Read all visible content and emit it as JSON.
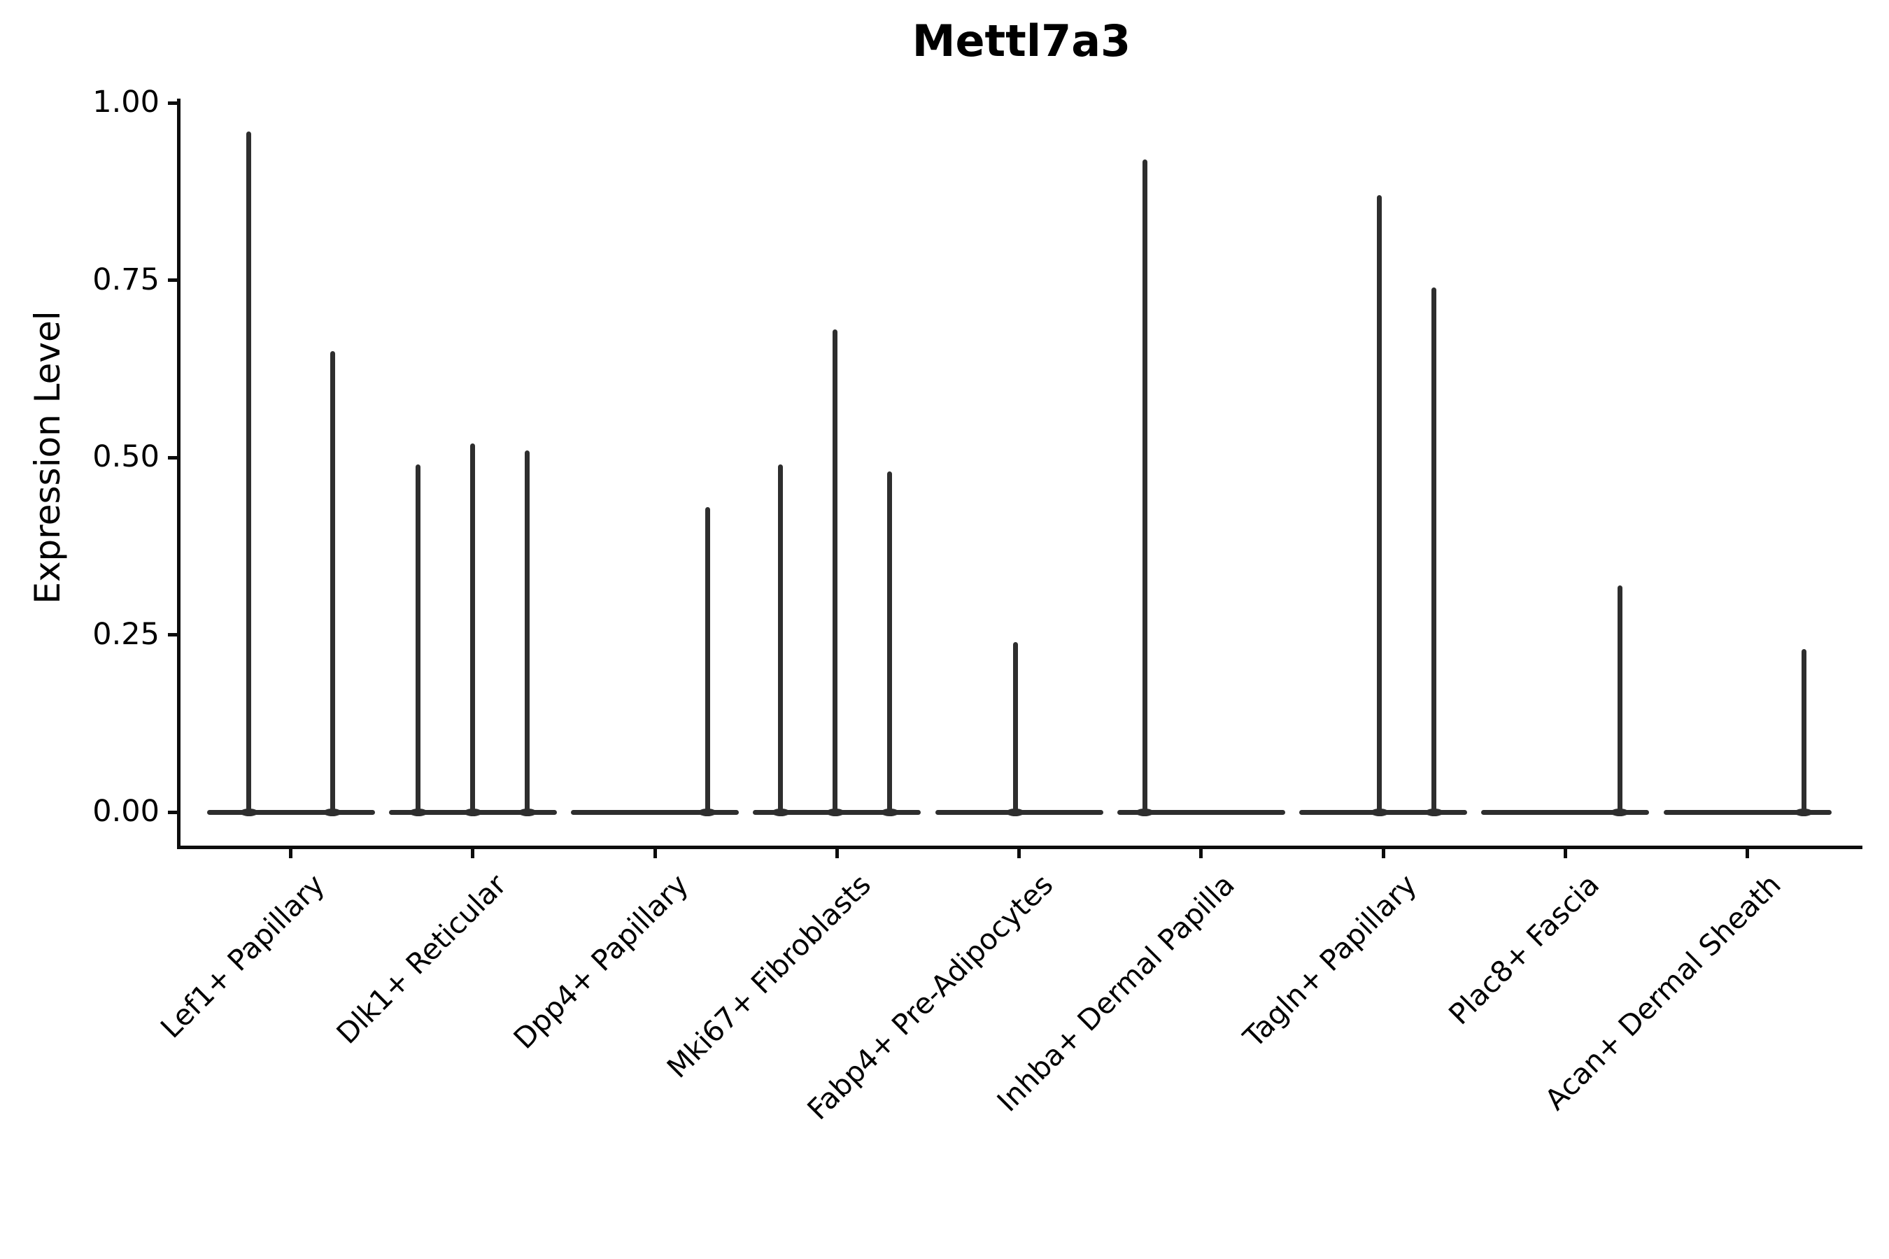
{
  "title": "Mettl7a3",
  "y_axis": {
    "label": "Expression Level",
    "tick_labels": [
      "0.00",
      "0.25",
      "0.50",
      "0.75",
      "1.00"
    ],
    "tick_values": [
      0,
      0.25,
      0.5,
      0.75,
      1.0
    ]
  },
  "chart_data": {
    "type": "violin",
    "title": "Mettl7a3",
    "xlabel": "",
    "ylabel": "Expression Level",
    "ylim": [
      0,
      1.0
    ],
    "grid": false,
    "legend": "none",
    "y_tick_labels": [
      "0.00",
      "0.25",
      "0.50",
      "0.75",
      "1.00"
    ],
    "y_tick_values": [
      0,
      0.25,
      0.5,
      0.75,
      1.0
    ],
    "categories": [
      "Lef1+ Papillary",
      "Dlk1+ Reticular",
      "Dpp4+ Papillary",
      "Mki67+ Fibroblasts",
      "Fabp4+ Pre-Adipocytes",
      "Inhba+ Dermal Papilla",
      "Tagln+ Papillary",
      "Plac8+ Fascia",
      "Acan+ Dermal Sheath"
    ],
    "series": [
      {
        "category": "Lef1+ Papillary",
        "baseline_value": 0,
        "spikes": [
          {
            "offset": -0.23,
            "value": 0.96
          },
          {
            "offset": 0.23,
            "value": 0.65
          }
        ]
      },
      {
        "category": "Dlk1+ Reticular",
        "baseline_value": 0,
        "spikes": [
          {
            "offset": -0.3,
            "value": 0.49
          },
          {
            "offset": 0.0,
            "value": 0.52
          },
          {
            "offset": 0.3,
            "value": 0.51
          }
        ]
      },
      {
        "category": "Dpp4+ Papillary",
        "baseline_value": 0,
        "spikes": [
          {
            "offset": 0.29,
            "value": 0.43
          }
        ]
      },
      {
        "category": "Mki67+ Fibroblasts",
        "baseline_value": 0,
        "spikes": [
          {
            "offset": -0.31,
            "value": 0.49
          },
          {
            "offset": -0.01,
            "value": 0.68
          },
          {
            "offset": 0.29,
            "value": 0.48
          }
        ]
      },
      {
        "category": "Fabp4+ Pre-Adipocytes",
        "baseline_value": 0,
        "spikes": [
          {
            "offset": -0.02,
            "value": 0.24
          }
        ]
      },
      {
        "category": "Inhba+ Dermal Papilla",
        "baseline_value": 0,
        "spikes": [
          {
            "offset": -0.31,
            "value": 0.92
          }
        ]
      },
      {
        "category": "Tagln+ Papillary",
        "baseline_value": 0,
        "spikes": [
          {
            "offset": -0.02,
            "value": 0.87
          },
          {
            "offset": 0.28,
            "value": 0.74
          }
        ]
      },
      {
        "category": "Plac8+ Fascia",
        "baseline_value": 0,
        "spikes": [
          {
            "offset": 0.3,
            "value": 0.32
          }
        ]
      },
      {
        "category": "Acan+ Dermal Sheath",
        "baseline_value": 0,
        "spikes": [
          {
            "offset": 0.31,
            "value": 0.23
          }
        ]
      }
    ],
    "colors": {
      "violin_stroke": "#2e2e2e",
      "axis": "#0d0d0d",
      "text": "#000000",
      "background": "#ffffff"
    }
  }
}
